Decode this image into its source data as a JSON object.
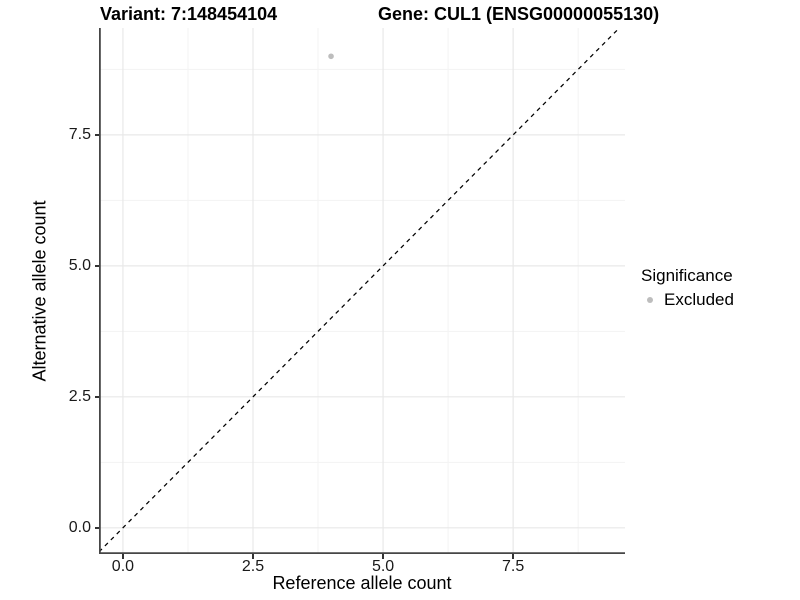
{
  "chart_data": {
    "type": "scatter",
    "title_left": "Variant: 7:148454104",
    "title_right": "Gene: CUL1 (ENSG00000055130)",
    "xlabel": "Reference allele count",
    "ylabel": "Alternative allele count",
    "xlim": [
      -0.46,
      9.65
    ],
    "ylim": [
      -0.5,
      9.54
    ],
    "x_major_ticks": [
      0,
      2.5,
      5,
      7.5
    ],
    "x_tick_labels": [
      "0.0",
      "2.5",
      "5.0",
      "7.5"
    ],
    "x_minor_ticks": [
      1.25,
      3.75,
      6.25,
      8.75
    ],
    "y_major_ticks": [
      0,
      2.5,
      5,
      7.5
    ],
    "y_tick_labels": [
      "0.0",
      "2.5",
      "5.0",
      "7.5"
    ],
    "y_minor_ticks": [
      1.25,
      3.75,
      6.25,
      8.75
    ],
    "grid": true,
    "legend_position": "right",
    "reference_line": {
      "type": "identity y=x",
      "style": "dashed",
      "color": "#000000"
    },
    "series": [
      {
        "name": "Excluded",
        "color": "#bdbdbd",
        "points": [
          {
            "x": 4,
            "y": 9
          }
        ]
      }
    ],
    "legend": {
      "title": "Significance",
      "items": [
        {
          "label": "Excluded",
          "color": "#bdbdbd"
        }
      ]
    },
    "colors": {
      "grid_major": "#e8e8e8",
      "grid_minor": "#f3f3f3",
      "axis_line": "#464646",
      "tick_mark": "#333333",
      "point": "#bdbdbd",
      "dashed_line": "#000000"
    }
  }
}
